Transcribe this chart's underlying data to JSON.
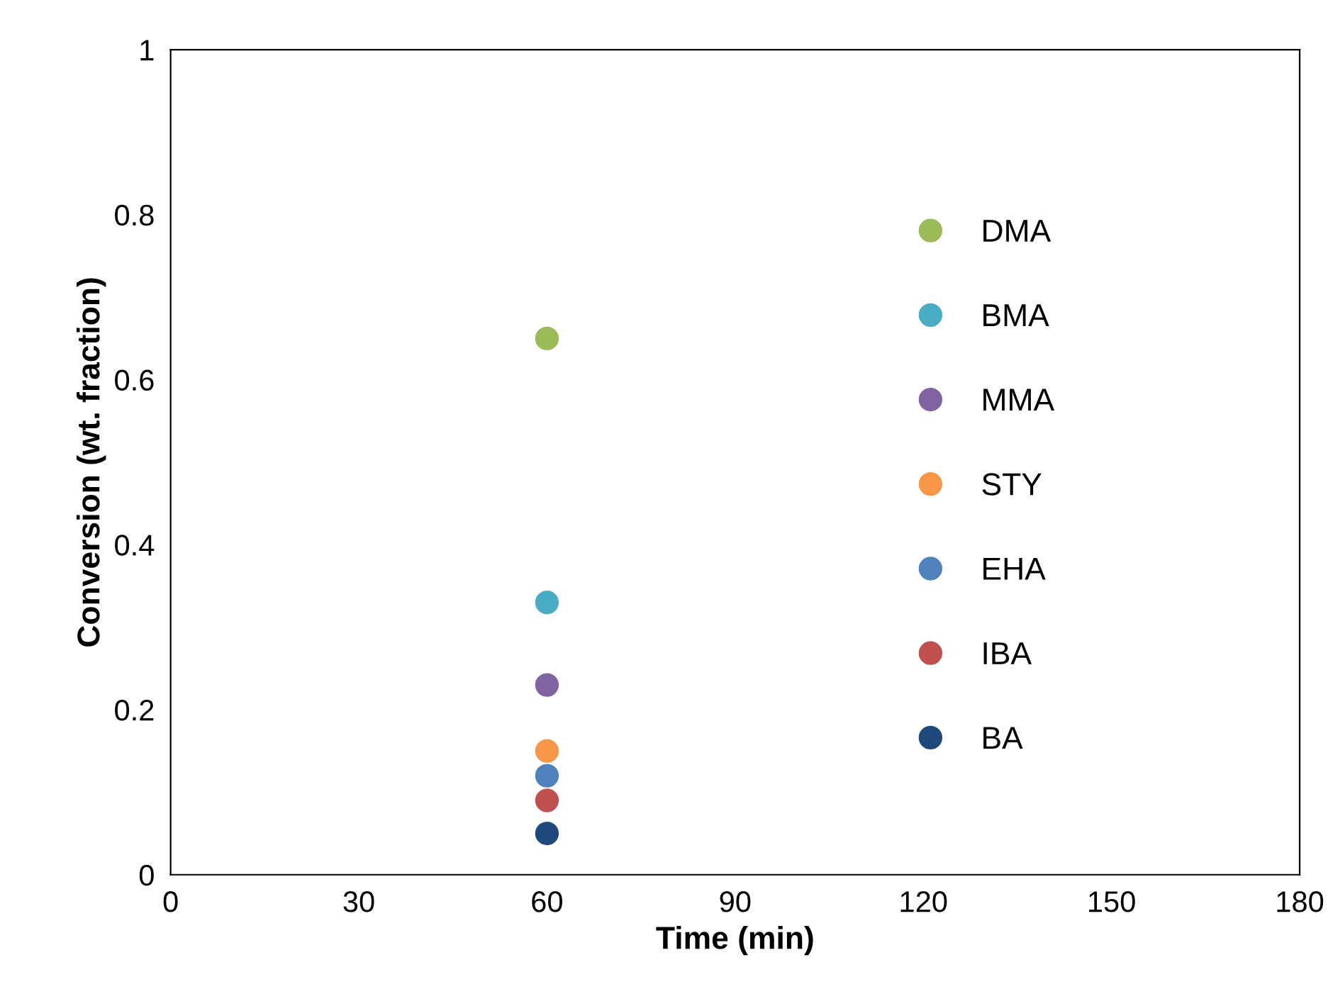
{
  "chart_data": {
    "type": "scatter",
    "xlabel": "Time (min)",
    "ylabel": "Conversion (wt. fraction)",
    "xlim": [
      0,
      180
    ],
    "xticks": [
      0,
      30,
      60,
      90,
      120,
      150,
      180
    ],
    "ylim": [
      0,
      1
    ],
    "yticks": [
      0,
      0.2,
      0.4,
      0.6,
      0.8,
      1
    ],
    "grid": false,
    "legend": "right",
    "marker": "circle",
    "x": [
      60
    ],
    "series": [
      {
        "name": "DMA",
        "color": "#9bbb59",
        "values": [
          0.65
        ]
      },
      {
        "name": "BMA",
        "color": "#4bacc6",
        "values": [
          0.33
        ]
      },
      {
        "name": "MMA",
        "color": "#8064a2",
        "values": [
          0.23
        ]
      },
      {
        "name": "STY",
        "color": "#f79646",
        "values": [
          0.15
        ]
      },
      {
        "name": "EHA",
        "color": "#4f81bd",
        "values": [
          0.12
        ]
      },
      {
        "name": "IBA",
        "color": "#c0504d",
        "values": [
          0.09
        ]
      },
      {
        "name": "BA",
        "color": "#1f497d",
        "values": [
          0.05
        ]
      }
    ]
  }
}
